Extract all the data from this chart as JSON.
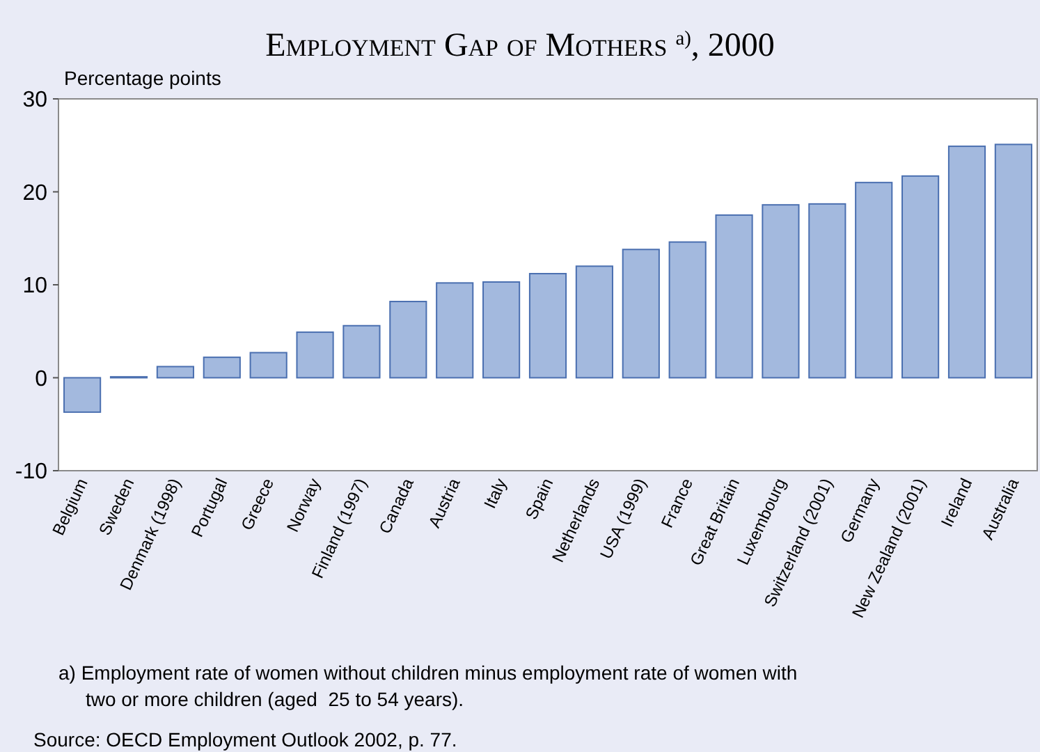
{
  "chart_data": {
    "type": "bar",
    "title": "Employment Gap of Mothers $^{a)}$, 2000",
    "ylabel": "Percentage points",
    "categories": [
      "Belgium",
      "Sweden",
      "Denmark (1998)",
      "Portugal",
      "Greece",
      "Norway",
      "Finland (1997)",
      "Canada",
      "Austria",
      "Italy",
      "Spain",
      "Netherlands",
      "USA (1999)",
      "France",
      "Great Britain",
      "Luxembourg",
      "Switzerland (2001)",
      "Germany",
      "New Zealand (2001)",
      "Ireland",
      "Australia"
    ],
    "values": [
      -3.7,
      0.1,
      1.2,
      2.2,
      2.7,
      4.9,
      5.6,
      8.2,
      10.2,
      10.3,
      11.2,
      12,
      13.8,
      14.6,
      17.5,
      18.6,
      18.7,
      21,
      21.7,
      24.9,
      25.1
    ],
    "color": "#a3b9de",
    "ylim": [
      -10,
      30
    ],
    "yticks": [
      -10,
      0,
      10,
      20,
      30
    ],
    "grid": false,
    "annotations": [
      "a) Employment rate of women without children minus employment rate of women with\n     two or more children (aged  25 to 54 years).",
      "Source: OECD Employment Outlook 2002, p. 77."
    ]
  }
}
